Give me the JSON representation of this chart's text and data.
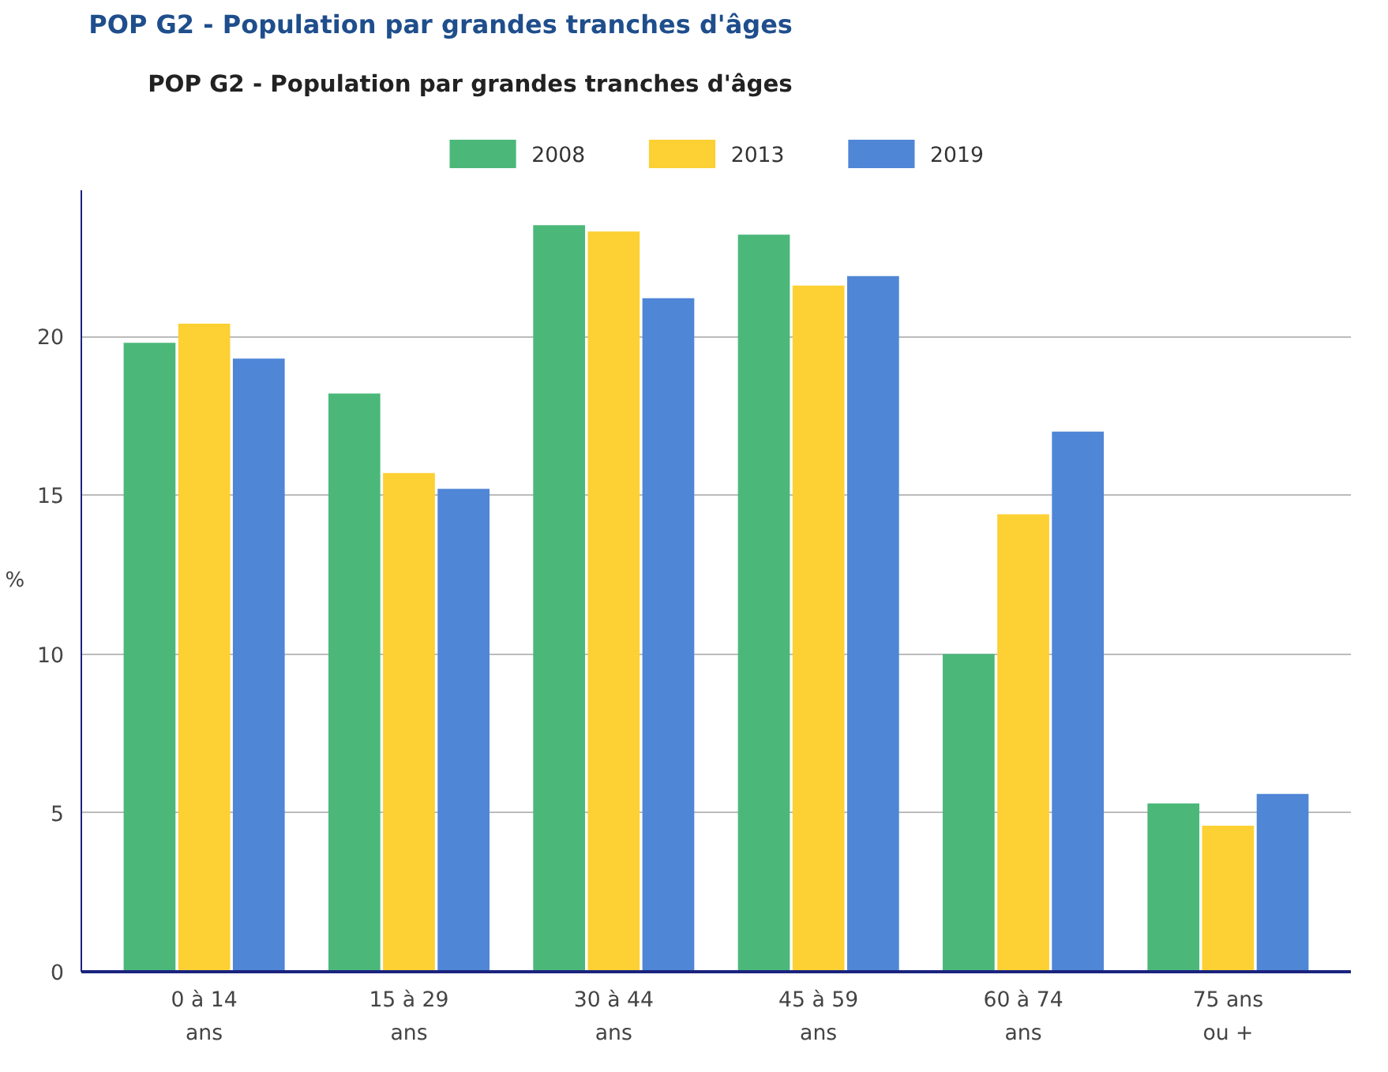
{
  "chart_data": {
    "type": "bar",
    "title": "POP G2 - Population par grandes tranches d'âges",
    "ylabel": "%",
    "annotations": [
      "POP G2 - Population par grandes tranches d'âges"
    ],
    "categories": [
      "0 à 14\nans",
      "15 à 29\nans",
      "30 à 44\nans",
      "45 à 59\nans",
      "60 à 74\nans",
      "75 ans\nou +"
    ],
    "series": [
      {
        "name": "2008",
        "color": "#4bb87a",
        "values": [
          19.8,
          18.2,
          23.5,
          23.2,
          10.0,
          5.3
        ]
      },
      {
        "name": "2013",
        "color": "#fdd033",
        "values": [
          20.4,
          15.7,
          23.3,
          21.6,
          14.4,
          4.6
        ]
      },
      {
        "name": "2019",
        "color": "#4f86d6",
        "values": [
          19.3,
          15.2,
          21.2,
          21.9,
          17.0,
          5.6
        ]
      }
    ],
    "ylim": [
      0,
      24.6
    ],
    "yticks": [
      0,
      5,
      10,
      15,
      20
    ],
    "grid": "y",
    "legend": "top"
  }
}
